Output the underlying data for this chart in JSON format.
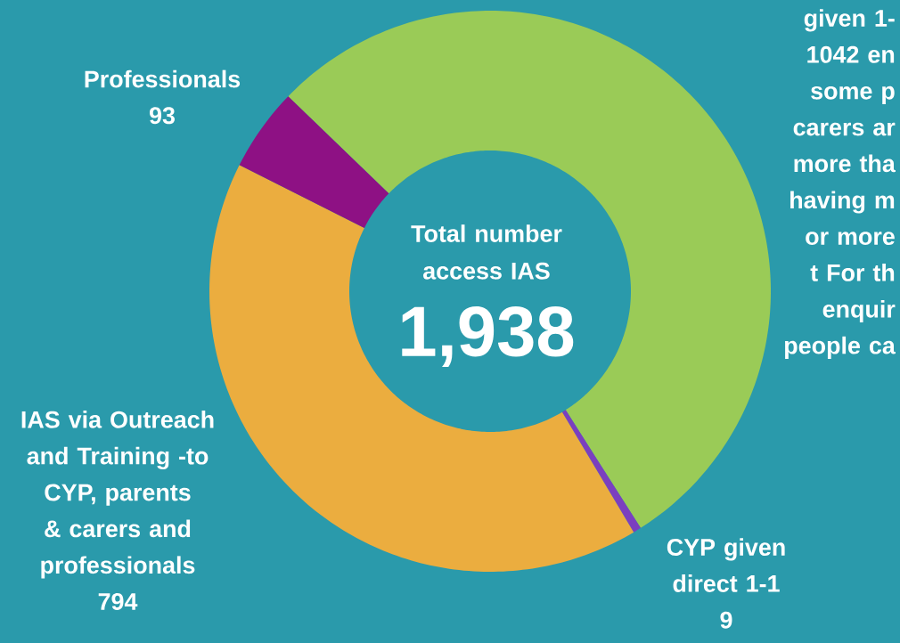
{
  "chart_data": {
    "type": "donut",
    "title": "Total number access IAS",
    "annotations": [
      "1,938"
    ],
    "categories": [
      "given 1- 1042 en some p carers ar more tha having m or more t For th enquir people ca",
      "CYP given direct 1-1",
      "IAS via Outreach and Training -to CYP, parents & carers and professionals",
      "Professionals"
    ],
    "values": [
      1042,
      9,
      794,
      93
    ],
    "value_labels": [
      null,
      "9",
      "794",
      "93"
    ],
    "colors": [
      "#9acb57",
      "#7b3fbf",
      "#ebad3f",
      "#8e1184"
    ]
  }
}
